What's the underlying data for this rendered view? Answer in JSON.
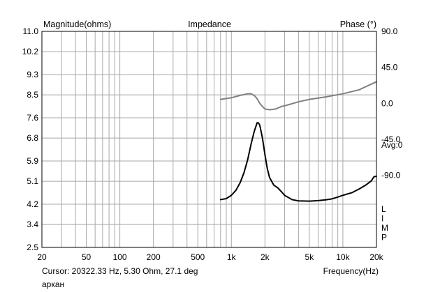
{
  "chart_data": {
    "type": "line",
    "title": "Impedance",
    "ylabel": "Magnitude(ohms)",
    "y2label": "Phase (°)",
    "xlabel": "Frequency(Hz)",
    "x_scale": "log",
    "xlim": [
      20,
      20000
    ],
    "ylim": [
      2.5,
      11.0
    ],
    "y2lim": [
      -180,
      90
    ],
    "grid": true,
    "x_ticks": [
      20,
      50,
      100,
      200,
      500,
      1000,
      2000,
      5000,
      10000,
      20000
    ],
    "x_tick_labels": [
      "20",
      "50",
      "100",
      "200",
      "500",
      "1k",
      "2k",
      "5k",
      "10k",
      "20k"
    ],
    "y_ticks": [
      2.5,
      3.4,
      4.2,
      5.1,
      5.9,
      6.8,
      7.6,
      8.5,
      9.3,
      10.2,
      11.0
    ],
    "y_tick_labels": [
      "2.5",
      "3.4",
      "4.2",
      "5.1",
      "5.9",
      "6.8",
      "7.6",
      "8.5",
      "9.3",
      "10.2",
      "11.0"
    ],
    "y2_ticks": [
      90,
      45,
      0,
      -45,
      -90
    ],
    "y2_tick_labels": [
      "90.0",
      "45.0",
      "0.0",
      "-45.0",
      "-90.0"
    ],
    "avg_label": "Avg:0",
    "limp_label": [
      "L",
      "I",
      "M",
      "P"
    ],
    "cursor_text": "Cursor: 20322.33 Hz, 5.30 Ohm, 27.1 deg",
    "file_name": "аркан",
    "series": [
      {
        "axis": "left",
        "color": "#000000",
        "points": [
          [
            800,
            4.38
          ],
          [
            900,
            4.42
          ],
          [
            1000,
            4.55
          ],
          [
            1100,
            4.75
          ],
          [
            1200,
            5.05
          ],
          [
            1300,
            5.45
          ],
          [
            1400,
            5.95
          ],
          [
            1500,
            6.55
          ],
          [
            1600,
            7.05
          ],
          [
            1700,
            7.4
          ],
          [
            1750,
            7.4
          ],
          [
            1800,
            7.3
          ],
          [
            1900,
            6.8
          ],
          [
            2000,
            6.15
          ],
          [
            2100,
            5.6
          ],
          [
            2200,
            5.25
          ],
          [
            2400,
            4.95
          ],
          [
            2600,
            4.85
          ],
          [
            2800,
            4.7
          ],
          [
            3000,
            4.55
          ],
          [
            3500,
            4.38
          ],
          [
            4000,
            4.33
          ],
          [
            5000,
            4.32
          ],
          [
            6000,
            4.34
          ],
          [
            7000,
            4.37
          ],
          [
            8000,
            4.41
          ],
          [
            9000,
            4.48
          ],
          [
            10000,
            4.55
          ],
          [
            12000,
            4.65
          ],
          [
            14000,
            4.8
          ],
          [
            16000,
            4.95
          ],
          [
            18000,
            5.12
          ],
          [
            19000,
            5.28
          ],
          [
            20000,
            5.3
          ]
        ]
      },
      {
        "axis": "right",
        "color": "#808080",
        "points": [
          [
            800,
            5
          ],
          [
            1000,
            7
          ],
          [
            1200,
            10
          ],
          [
            1400,
            12
          ],
          [
            1500,
            12
          ],
          [
            1600,
            10
          ],
          [
            1700,
            6
          ],
          [
            1800,
            0
          ],
          [
            1900,
            -4
          ],
          [
            2000,
            -7
          ],
          [
            2200,
            -8
          ],
          [
            2500,
            -7
          ],
          [
            2800,
            -4
          ],
          [
            3200,
            -2
          ],
          [
            4000,
            2
          ],
          [
            5000,
            5
          ],
          [
            7000,
            8
          ],
          [
            10000,
            12
          ],
          [
            14000,
            17
          ],
          [
            20000,
            27
          ]
        ]
      }
    ]
  }
}
